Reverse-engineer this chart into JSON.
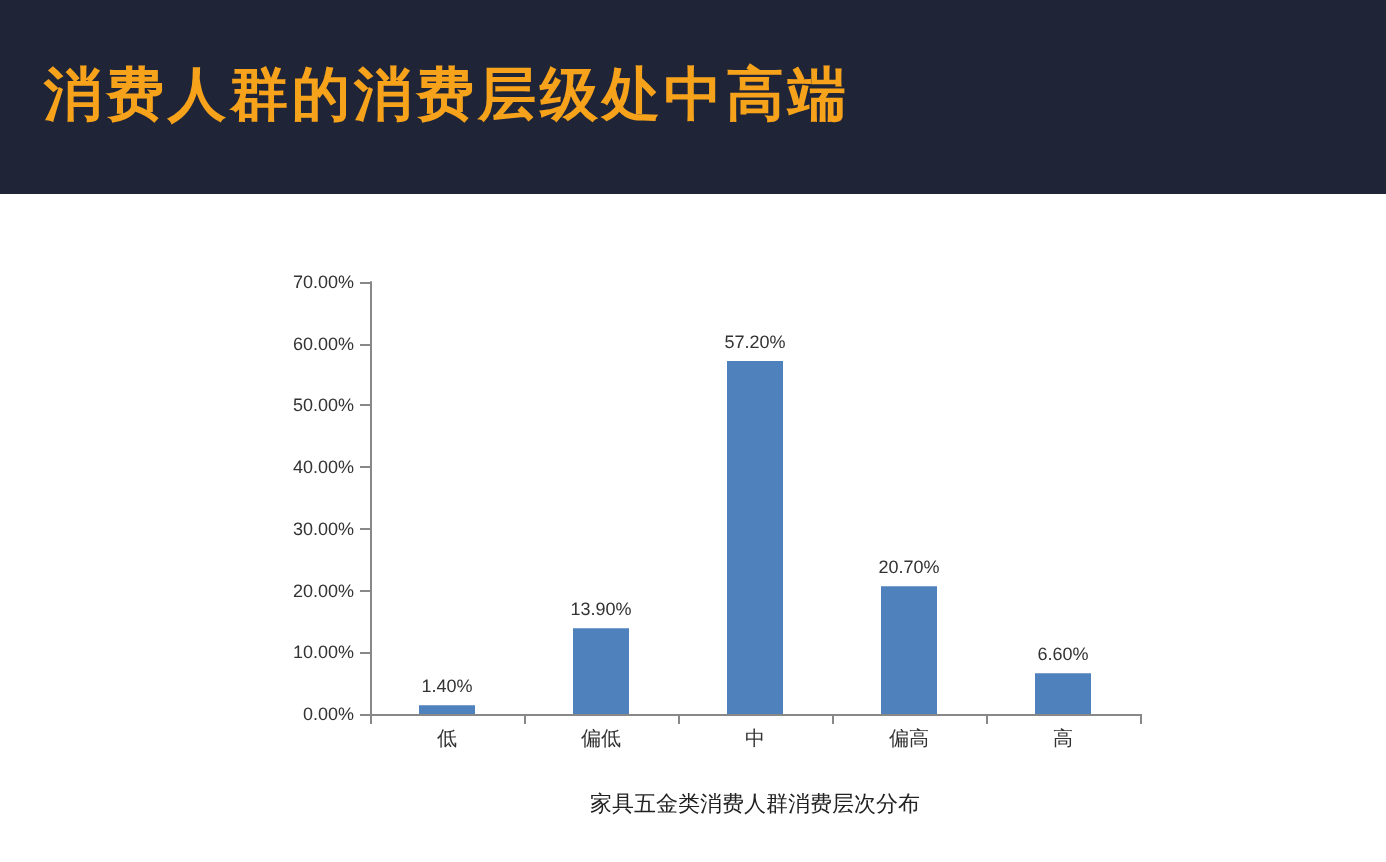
{
  "chart_data": {
    "type": "bar",
    "title": "消费人群的消费层级处中高端",
    "xlabel": "家具五金类消费人群消费层次分布",
    "categories": [
      "低",
      "偏低",
      "中",
      "偏高",
      "高"
    ],
    "values": [
      1.4,
      13.9,
      57.2,
      20.7,
      6.6
    ],
    "value_labels": [
      "1.40%",
      "13.90%",
      "57.20%",
      "20.70%",
      "6.60%"
    ],
    "color": "#4f81bd",
    "ylim": [
      0,
      70
    ],
    "yticks": [
      {
        "value": 0,
        "label": "0.00%"
      },
      {
        "value": 10,
        "label": "10.00%"
      },
      {
        "value": 20,
        "label": "20.00%"
      },
      {
        "value": 30,
        "label": "30.00%"
      },
      {
        "value": 40,
        "label": "40.00%"
      },
      {
        "value": 50,
        "label": "50.00%"
      },
      {
        "value": 60,
        "label": "60.00%"
      },
      {
        "value": 70,
        "label": "70.00%"
      }
    ],
    "grid": false
  }
}
